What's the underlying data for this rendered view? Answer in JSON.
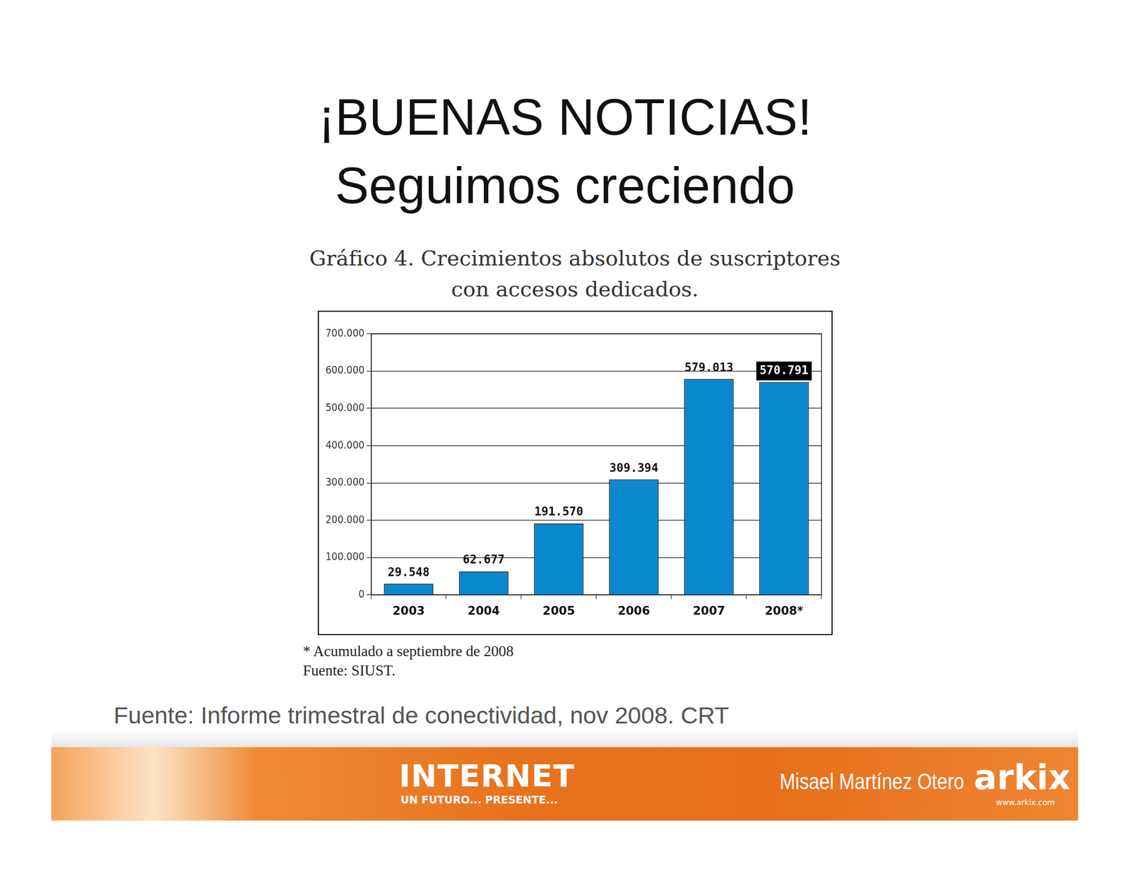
{
  "slide": {
    "title": [
      "¡BUENAS NOTICIAS!",
      "Seguimos creciendo"
    ],
    "source": "Fuente:  Informe trimestral de conectividad, nov 2008. CRT",
    "footer": {
      "banner": "INTERNET",
      "tagline": "UN FUTURO... PRESENTE...",
      "author": "Misael Martínez Otero",
      "logo": "arkix",
      "url": "www.arkix.com"
    }
  },
  "chart_data": {
    "type": "bar",
    "title": [
      "Gráfico 4. Crecimientos absolutos de suscriptores",
      "con accesos dedicados."
    ],
    "categories": [
      "2003",
      "2004",
      "2005",
      "2006",
      "2007",
      "2008*"
    ],
    "values": [
      29548,
      62677,
      191570,
      309394,
      579013,
      570791
    ],
    "value_labels": [
      "29.548",
      "62.677",
      "191.570",
      "309.394",
      "579.013",
      "570.791"
    ],
    "color": "#0a88d0",
    "ylim": [
      0,
      700000
    ],
    "yticks": [
      0,
      {
        "value": 100000,
        "label": "100.000"
      },
      {
        "value": 200000,
        "label": "200.000"
      },
      {
        "value": 300000,
        "label": "300.000"
      },
      {
        "value": 400000,
        "label": "400.000"
      },
      {
        "value": 500000,
        "label": "500.000"
      },
      {
        "value": 600000,
        "label": "600.000"
      },
      {
        "value": 700000,
        "label": "700.000"
      }
    ],
    "grid": true,
    "data_labels": true,
    "notes": [
      "* Acumulado a septiembre de 2008",
      "Fuente: SIUST."
    ]
  }
}
